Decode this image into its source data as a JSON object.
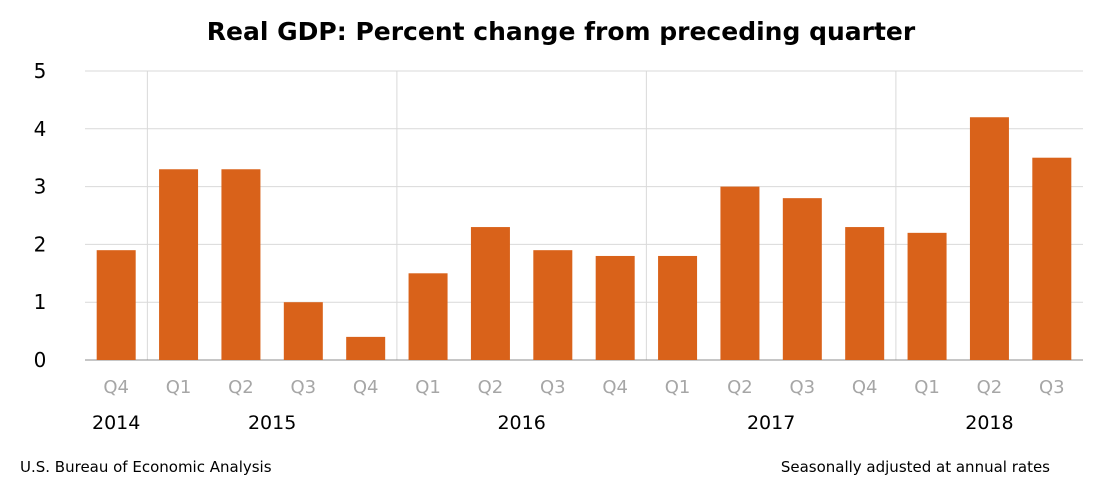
{
  "chart_data": {
    "type": "bar",
    "title": "Real GDP:  Percent change from preceding quarter",
    "categories": [
      "Q4",
      "Q1",
      "Q2",
      "Q3",
      "Q4",
      "Q1",
      "Q2",
      "Q3",
      "Q4",
      "Q1",
      "Q2",
      "Q3",
      "Q4",
      "Q1",
      "Q2",
      "Q3"
    ],
    "years": [
      {
        "label": "2014",
        "quarters": [
          "Q4"
        ]
      },
      {
        "label": "2015",
        "quarters": [
          "Q1",
          "Q2",
          "Q3",
          "Q4"
        ]
      },
      {
        "label": "2016",
        "quarters": [
          "Q1",
          "Q2",
          "Q3",
          "Q4"
        ]
      },
      {
        "label": "2017",
        "quarters": [
          "Q1",
          "Q2",
          "Q3",
          "Q4"
        ]
      },
      {
        "label": "2018",
        "quarters": [
          "Q1",
          "Q2",
          "Q3"
        ]
      }
    ],
    "values": [
      1.9,
      3.3,
      3.3,
      1.0,
      0.4,
      1.5,
      2.3,
      1.9,
      1.8,
      1.8,
      3.0,
      2.8,
      2.3,
      2.2,
      4.2,
      3.5
    ],
    "ylim": [
      0,
      5
    ],
    "yticks": [
      0,
      1,
      2,
      3,
      4,
      5
    ],
    "grid": true,
    "bar_color": "#D9621A",
    "source": "U.S. Bureau of Economic Analysis",
    "note": "Seasonally adjusted at annual rates"
  }
}
